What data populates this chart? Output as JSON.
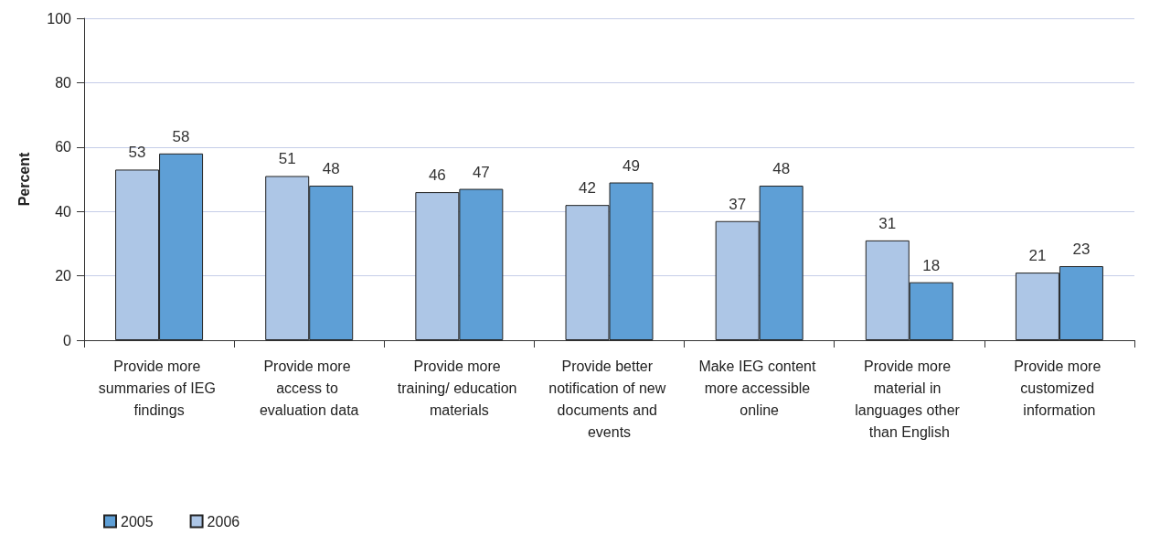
{
  "chart_data": {
    "type": "bar",
    "ylabel": "Percent",
    "categories": [
      "Provide more summaries of IEG findings",
      "Provide more access to evaluation data",
      "Provide more training/ education materials",
      "Provide better notification of new documents and events",
      "Make IEG content more accessible online",
      "Provide more material in languages other than English",
      "Provide more customized information"
    ],
    "series": [
      {
        "name": "2006",
        "color": "#adc6e6",
        "values": [
          53,
          51,
          46,
          42,
          37,
          31,
          21
        ]
      },
      {
        "name": "2005",
        "color": "#5e9fd6",
        "values": [
          58,
          48,
          47,
          49,
          48,
          18,
          23
        ]
      }
    ],
    "ylim": [
      0,
      100
    ],
    "yticks": [
      0,
      20,
      40,
      60,
      80,
      100
    ],
    "grid": "y",
    "legend": "bottom left",
    "data_labels": true
  }
}
